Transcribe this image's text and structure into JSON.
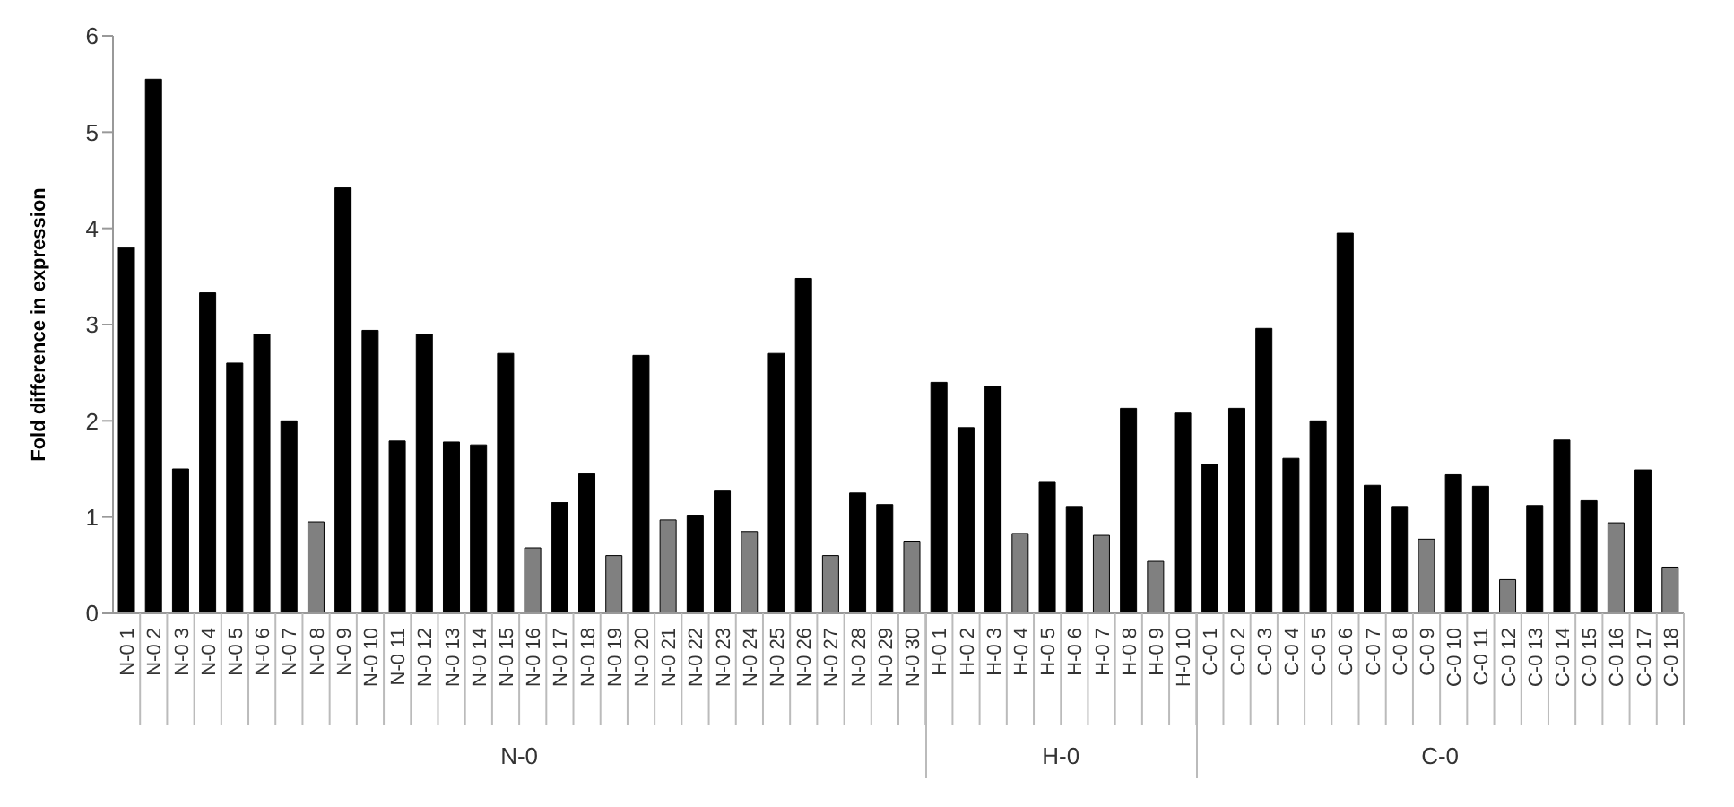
{
  "chart_data": {
    "type": "bar",
    "ylabel": "Fold difference in expression",
    "categories": [
      "N-0 1",
      "N-0 2",
      "N-0 3",
      "N-0 4",
      "N-0 5",
      "N-0 6",
      "N-0 7",
      "N-0 8",
      "N-0 9",
      "N-0 10",
      "N-0 11",
      "N-0 12",
      "N-0 13",
      "N-0 14",
      "N-0 15",
      "N-0 16",
      "N-0 17",
      "N-0 18",
      "N-0 19",
      "N-0 20",
      "N-0 21",
      "N-0 22",
      "N-0 23",
      "N-0 24",
      "N-0 25",
      "N-0 26",
      "N-0 27",
      "N-0 28",
      "N-0 29",
      "N-0 30",
      "H-0 1",
      "H-0 2",
      "H-0 3",
      "H-0 4",
      "H-0 5",
      "H-0 6",
      "H-0 7",
      "H-0 8",
      "H-0 9",
      "H-0 10",
      "C-0 1",
      "C-0 2",
      "C-0 3",
      "C-0 4",
      "C-0 5",
      "C-0 6",
      "C-0 7",
      "C-0 8",
      "C-0 9",
      "C-0 10",
      "C-0 11",
      "C-0 12",
      "C-0 13",
      "C-0 14",
      "C-0 15",
      "C-0 16",
      "C-0 17",
      "C-0 18"
    ],
    "values": [
      3.8,
      5.55,
      1.5,
      3.33,
      2.6,
      2.9,
      2.0,
      0.95,
      4.42,
      2.94,
      1.79,
      2.9,
      1.78,
      1.75,
      2.7,
      0.68,
      1.15,
      1.45,
      0.6,
      2.68,
      0.97,
      1.02,
      1.27,
      0.85,
      2.7,
      3.48,
      0.6,
      1.25,
      1.13,
      0.75,
      2.4,
      1.93,
      2.36,
      0.83,
      1.37,
      1.11,
      0.81,
      2.13,
      0.54,
      2.08,
      1.55,
      2.13,
      2.96,
      1.61,
      2.0,
      3.95,
      1.33,
      1.11,
      0.77,
      1.44,
      1.32,
      0.35,
      1.12,
      1.8,
      1.17,
      0.94,
      1.49,
      0.48
    ],
    "colors": [
      "#000000",
      "#000000",
      "#000000",
      "#000000",
      "#000000",
      "#000000",
      "#000000",
      "#808080",
      "#000000",
      "#000000",
      "#000000",
      "#000000",
      "#000000",
      "#000000",
      "#000000",
      "#808080",
      "#000000",
      "#000000",
      "#808080",
      "#000000",
      "#808080",
      "#000000",
      "#000000",
      "#808080",
      "#000000",
      "#000000",
      "#808080",
      "#000000",
      "#000000",
      "#808080",
      "#000000",
      "#000000",
      "#000000",
      "#808080",
      "#000000",
      "#000000",
      "#808080",
      "#000000",
      "#808080",
      "#000000",
      "#000000",
      "#000000",
      "#000000",
      "#000000",
      "#000000",
      "#000000",
      "#000000",
      "#000000",
      "#808080",
      "#000000",
      "#000000",
      "#808080",
      "#000000",
      "#000000",
      "#000000",
      "#808080",
      "#000000",
      "#808080"
    ],
    "ylim": [
      0,
      6
    ],
    "yticks": [
      0,
      1,
      2,
      3,
      4,
      5,
      6
    ],
    "grid": false,
    "legend": false,
    "annotations": [
      "N-0",
      "H-0",
      "C-0"
    ]
  }
}
